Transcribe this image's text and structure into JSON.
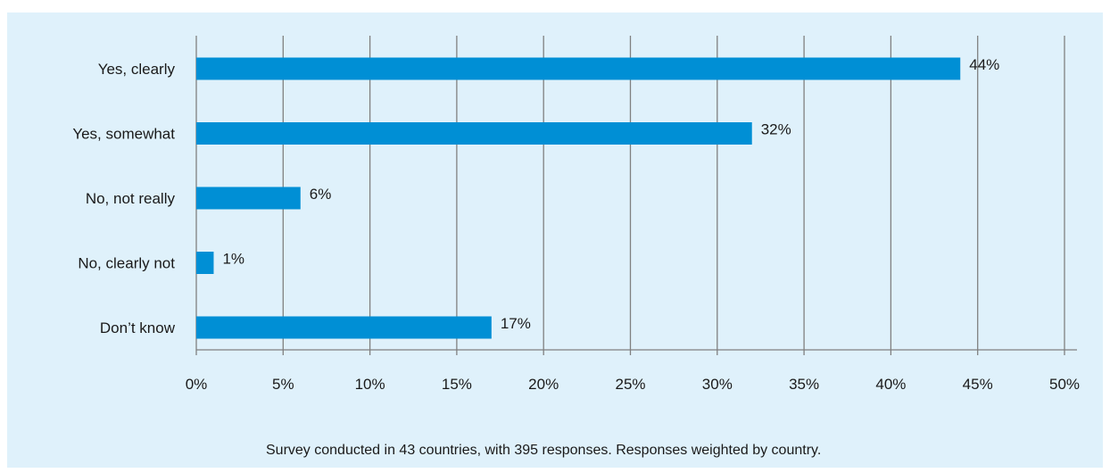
{
  "chart_data": {
    "type": "bar",
    "orientation": "horizontal",
    "categories": [
      "Yes, clearly",
      "Yes, somewhat",
      "No, not really",
      "No, clearly not",
      "Don’t know"
    ],
    "values": [
      44,
      32,
      6,
      1,
      17
    ],
    "value_labels": [
      "44%",
      "32%",
      "6%",
      "1%",
      "17%"
    ],
    "xlim": [
      0,
      50
    ],
    "x_ticks": [
      0,
      5,
      10,
      15,
      20,
      25,
      30,
      35,
      40,
      45,
      50
    ],
    "x_tick_labels": [
      "0%",
      "5%",
      "10%",
      "15%",
      "20%",
      "25%",
      "30%",
      "35%",
      "40%",
      "45%",
      "50%"
    ],
    "grid": "vertical",
    "bar_color": "#008fd5",
    "gridline_color": "#808080",
    "background_color": "#dff1fb"
  },
  "footnote": "Survey conducted in 43 countries, with 395 responses. Responses weighted by country."
}
